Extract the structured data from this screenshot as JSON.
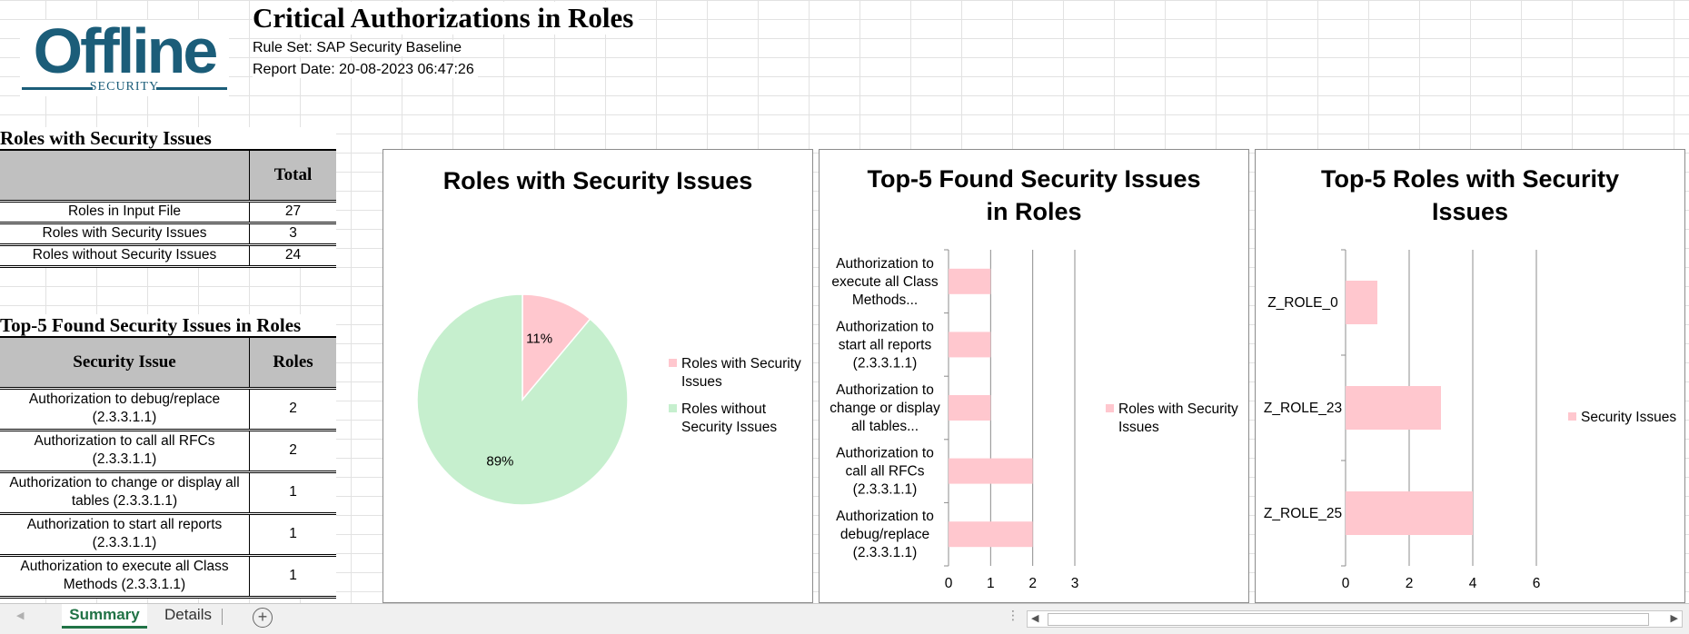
{
  "logo": {
    "word": "Offline",
    "sub": "SECURITY"
  },
  "report": {
    "title": "Critical Authorizations in Roles",
    "rule_set": "Rule Set: SAP Security Baseline",
    "report_date": "Report Date: 20-08-2023 06:47:26"
  },
  "summary": {
    "title": "Roles with Security Issues",
    "header_total": "Total",
    "rows": [
      {
        "label": "Roles in Input File",
        "value": "27"
      },
      {
        "label": "Roles with Security Issues",
        "value": "3"
      },
      {
        "label": "Roles without Security Issues",
        "value": "24"
      }
    ]
  },
  "top5": {
    "title": "Top-5 Found Security Issues in Roles",
    "header_issue": "Security Issue",
    "header_roles": "Roles",
    "rows": [
      {
        "line1": "Authorization to debug/replace",
        "line2": "(2.3.3.1.1)",
        "value": "2"
      },
      {
        "line1": "Authorization to call all RFCs",
        "line2": "(2.3.3.1.1)",
        "value": "2"
      },
      {
        "line1": "Authorization to change or display all",
        "line2": "tables (2.3.3.1.1)",
        "value": "1"
      },
      {
        "line1": "Authorization to start all reports",
        "line2": "(2.3.3.1.1)",
        "value": "1"
      },
      {
        "line1": "Authorization to execute all Class",
        "line2": "Methods (2.3.3.1.1)",
        "value": "1"
      }
    ]
  },
  "colors": {
    "pink": "#ffc7ce",
    "green": "#c6efce",
    "brand": "#1b5d79",
    "tab_green": "#217346"
  },
  "chart_data": [
    {
      "type": "pie",
      "title": "Roles with Security Issues",
      "categories": [
        "Roles with Security Issues",
        "Roles without Security Issues"
      ],
      "values": [
        3,
        24
      ],
      "labels": [
        "11%",
        "89%"
      ],
      "legend": "right"
    },
    {
      "type": "bar",
      "orientation": "horizontal",
      "title_lines": [
        "Top-5 Found Security Issues",
        "in Roles"
      ],
      "categories": [
        [
          "Authorization to",
          "execute all Class",
          "Methods..."
        ],
        [
          "Authorization to",
          "start all reports",
          "(2.3.3.1.1)"
        ],
        [
          "Authorization to",
          "change or display",
          "all tables..."
        ],
        [
          "Authorization to",
          "call all RFCs",
          "(2.3.3.1.1)"
        ],
        [
          "Authorization to",
          "debug/replace",
          "(2.3.3.1.1)"
        ]
      ],
      "series": [
        {
          "name": "Roles with Security Issues",
          "values": [
            1,
            1,
            1,
            2,
            2
          ]
        }
      ],
      "xlim": [
        0,
        3
      ],
      "xticks": [
        "0",
        "1",
        "2",
        "3"
      ],
      "grid": true,
      "legend": "right"
    },
    {
      "type": "bar",
      "orientation": "horizontal",
      "title_lines": [
        "Top-5 Roles with Security",
        "Issues"
      ],
      "categories": [
        "Z_ROLE_0",
        "Z_ROLE_23",
        "Z_ROLE_25"
      ],
      "series": [
        {
          "name": "Security Issues",
          "values": [
            1,
            3,
            4
          ]
        }
      ],
      "xlim": [
        0,
        6
      ],
      "xticks": [
        "0",
        "2",
        "4",
        "6"
      ],
      "grid": true,
      "legend": "right"
    }
  ],
  "tabs": {
    "summary": "Summary",
    "details": "Details",
    "add": "+"
  }
}
